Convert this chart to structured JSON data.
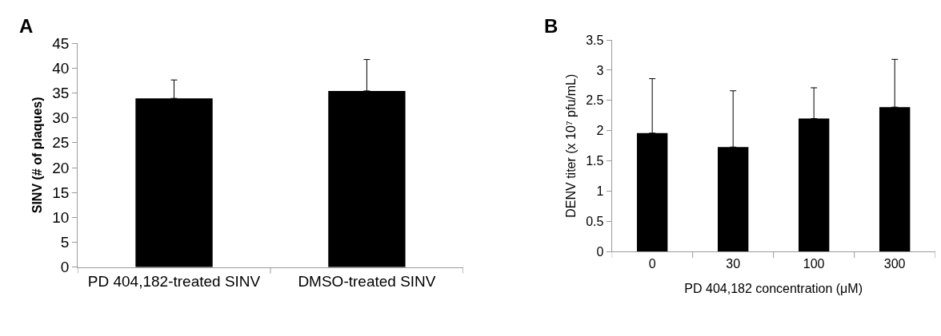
{
  "chart_data": [
    {
      "type": "bar",
      "title": "A",
      "ylabel": "SINV (# of plaques)",
      "categories": [
        "PD 404,182-treated SINV",
        "DMSO-treated SINV"
      ],
      "values": [
        33.9,
        35.4
      ],
      "errors": [
        [
          33.9,
          37.6
        ],
        [
          35.4,
          41.7
        ]
      ],
      "color": "#000000",
      "ylim": [
        0,
        45
      ],
      "yticks": [
        0,
        5,
        10,
        15,
        20,
        25,
        30,
        35,
        40,
        45
      ]
    },
    {
      "type": "bar",
      "title": "B",
      "xlabel": "PD 404,182 concentration (μM)",
      "ylabel": "DENV titer (x 10⁷ pfu/mL)",
      "categories": [
        "0",
        "30",
        "100",
        "300"
      ],
      "values": [
        1.96,
        1.73,
        2.2,
        2.39
      ],
      "errors": [
        [
          1.96,
          2.86
        ],
        [
          1.73,
          2.66
        ],
        [
          2.2,
          2.71
        ],
        [
          2.39,
          3.18
        ]
      ],
      "color": "#000000",
      "ylim": [
        0,
        3.5
      ],
      "yticks": [
        0,
        0.5,
        1,
        1.5,
        2,
        2.5,
        3,
        3.5
      ]
    }
  ]
}
